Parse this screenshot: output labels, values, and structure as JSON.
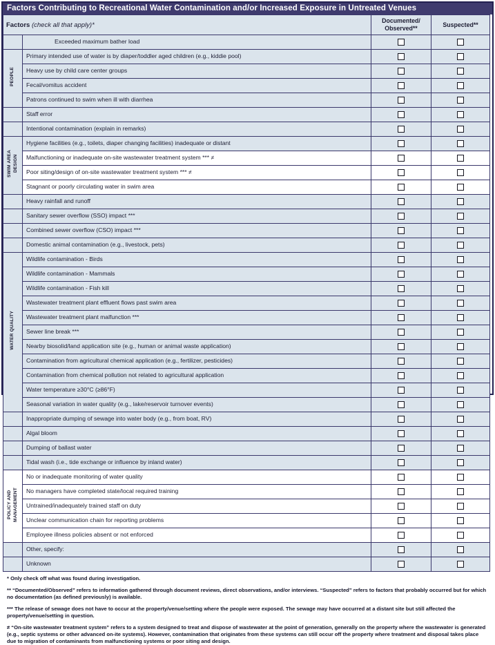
{
  "title": "Factors Contributing to Recreational Water Contamination and/or Increased Exposure in Untreated Venues",
  "header": {
    "factors_label": "Factors",
    "factors_note": "(check all that apply)*",
    "col_documented": "Documented/\nObserved**",
    "col_suspected": "Suspected**"
  },
  "checkbox_columns": [
    "documented",
    "suspected"
  ],
  "all_checkbox_states": "unchecked",
  "colors": {
    "title_bar": "#3f3b6e",
    "shaded_row": "#dbe4ec",
    "border": "#39366a",
    "title_text": "#ffffff"
  },
  "groups": [
    {
      "label": null,
      "cell_shaded": true,
      "rows": [
        {
          "text": "Exceeded maximum bather load",
          "shaded": true,
          "indent": true
        }
      ]
    },
    {
      "label": "PEOPLE",
      "cell_shaded": true,
      "rows": [
        {
          "text": "Primary intended use of water is by diaper/toddler aged children (e.g., kiddie pool)",
          "shaded": true
        },
        {
          "text": "Heavy use by child care center groups",
          "shaded": true
        },
        {
          "text": "Fecal/vomitus accident",
          "shaded": true
        },
        {
          "text": "Patrons continued to swim when ill with diarrhea",
          "shaded": true
        }
      ]
    },
    {
      "label": null,
      "cell_shaded": true,
      "rows": [
        {
          "text": "Staff error",
          "shaded": true
        },
        {
          "text": "Intentional contamination (explain in remarks)",
          "shaded": true
        }
      ]
    },
    {
      "label": "SWIM AREA\nDESIGN",
      "cell_shaded": true,
      "rows": [
        {
          "text": "Hygiene facilities (e.g., toilets, diaper changing facilities) inadequate or distant",
          "shaded": true
        },
        {
          "text": "Malfunctioning or inadequate on-site wastewater treatment system *** ≠",
          "shaded": false
        },
        {
          "text": "Poor siting/design of on-site wastewater treatment system *** ≠",
          "shaded": false
        },
        {
          "text": "Stagnant or poorly circulating water in swim area",
          "shaded": false
        }
      ]
    },
    {
      "label": null,
      "cell_shaded": true,
      "rows": [
        {
          "text": "Heavy rainfall and runoff",
          "shaded": true
        },
        {
          "text": "Sanitary sewer overflow (SSO) impact ***",
          "shaded": true
        },
        {
          "text": "Combined sewer overflow (CSO) impact ***",
          "shaded": true
        },
        {
          "text": "Domestic animal contamination (e.g., livestock, pets)",
          "shaded": true
        }
      ]
    },
    {
      "label": "WATER QUALITY",
      "cell_shaded": true,
      "rows": [
        {
          "text": "Wildlife contamination - Birds",
          "shaded": true
        },
        {
          "text": "Wildlife contamination - Mammals",
          "shaded": true
        },
        {
          "text": "Wildlife contamination - Fish kill",
          "shaded": true
        },
        {
          "text": "Wastewater treatment plant effluent flows past swim area",
          "shaded": true
        },
        {
          "text": "Wastewater treatment plant malfunction ***",
          "shaded": true
        },
        {
          "text": "Sewer line break ***",
          "shaded": true
        },
        {
          "text": "Nearby biosolid/land application site (e.g., human or animal waste application)",
          "shaded": true
        },
        {
          "text": "Contamination from agricultural chemical application (e.g., fertilizer, pesticides)",
          "shaded": true
        },
        {
          "text": "Contamination from chemical pollution not related to agricultural application",
          "shaded": true
        },
        {
          "text": "Water temperature ≥30°C (≥86°F)",
          "shaded": true
        },
        {
          "text": "Seasonal variation in water quality (e.g., lake/reservoir turnover events)",
          "shaded": true
        }
      ]
    },
    {
      "label": null,
      "cell_shaded": true,
      "rows": [
        {
          "text": "Inappropriate dumping of sewage into water body (e.g., from boat, RV)",
          "shaded": true
        },
        {
          "text": "Algal bloom",
          "shaded": true
        },
        {
          "text": "Dumping of ballast water",
          "shaded": true
        },
        {
          "text": "Tidal wash (i.e., tide exchange or influence by inland water)",
          "shaded": true
        }
      ]
    },
    {
      "label": "POLICY AND\nMANAGEMENT",
      "cell_shaded": false,
      "rows": [
        {
          "text": "No or inadequate monitoring of water quality",
          "shaded": false
        },
        {
          "text": "No managers have completed state/local required training",
          "shaded": false
        },
        {
          "text": "Untrained/inadequately trained staff on duty",
          "shaded": false
        },
        {
          "text": "Unclear communication chain for reporting problems",
          "shaded": false
        },
        {
          "text": "Employee illness policies absent or not enforced",
          "shaded": false
        }
      ]
    },
    {
      "label": null,
      "cell_shaded": true,
      "rows": [
        {
          "text": "Other, specify:",
          "shaded": true
        },
        {
          "text": "Unknown",
          "shaded": true
        }
      ]
    }
  ],
  "footnotes": [
    "* Only check off what was found during investigation.",
    "** “Documented/Observed” refers to information gathered through document reviews, direct observations, and/or interviews. “Suspected” refers to factors that probably occurred but for which no documentation (as defined previously) is available.",
    "*** The release of sewage does not have to occur at the property/venue/setting where the people were exposed. The sewage may have occurred at a distant site but still affected the property/venue/setting in question.",
    "≠ “On-site wastewater treatment system” refers to a system designed to treat and dispose of wastewater at the point of generation, generally on the property where the wastewater is generated (e.g., septic systems or other advanced on-ite systems). However, contamination that originates from these systems can still occur off the property where treatment and disposal takes place due to migration of contaminants from malfunctioning systems or poor siting and design."
  ]
}
